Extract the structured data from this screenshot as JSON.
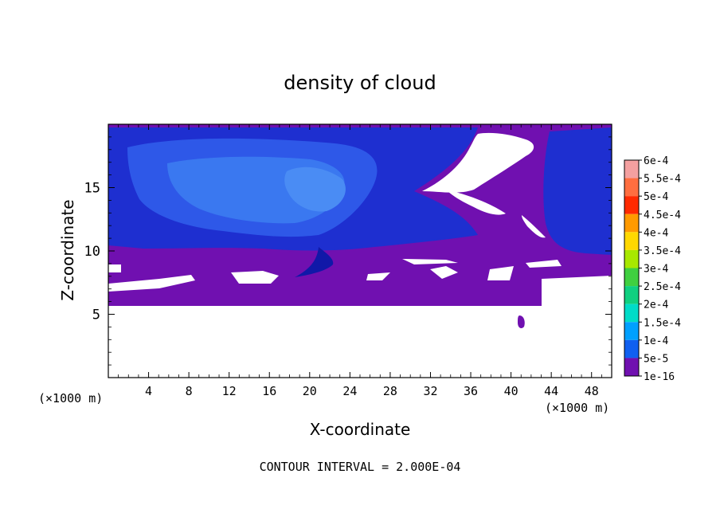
{
  "chart_data": {
    "type": "heatmap",
    "title": "density of cloud",
    "xlabel": "X-coordinate",
    "ylabel": "Z-coordinate",
    "x_unit_left": "(×1000 m)",
    "x_unit_right": "(×1000 m)",
    "footer": "CONTOUR INTERVAL = 2.000E-04",
    "xlim": [
      0,
      50
    ],
    "ylim": [
      0,
      20
    ],
    "x_ticks": [
      "4",
      "8",
      "12",
      "16",
      "20",
      "24",
      "28",
      "32",
      "36",
      "40",
      "44",
      "48"
    ],
    "x_tick_values": [
      4,
      8,
      12,
      16,
      20,
      24,
      28,
      32,
      36,
      40,
      44,
      48
    ],
    "y_ticks": [
      "5",
      "10",
      "15"
    ],
    "y_tick_values": [
      5,
      10,
      15
    ],
    "colorbar": {
      "labels": [
        "6e-4",
        "5.5e-4",
        "5e-4",
        "4.5e-4",
        "4e-4",
        "3.5e-4",
        "3e-4",
        "2.5e-4",
        "2e-4",
        "1.5e-4",
        "1e-4",
        "5e-5",
        "1e-16"
      ],
      "colors": [
        "#f4a0a0",
        "#ff6e40",
        "#ff2a00",
        "#ff9a00",
        "#ffd800",
        "#a8e800",
        "#40d040",
        "#10d080",
        "#00dcc8",
        "#00a0ff",
        "#1060f0",
        "#1020d0",
        "#7010b0"
      ]
    },
    "cloud_base_z": 5.7,
    "cloud_top_z": 20
  }
}
